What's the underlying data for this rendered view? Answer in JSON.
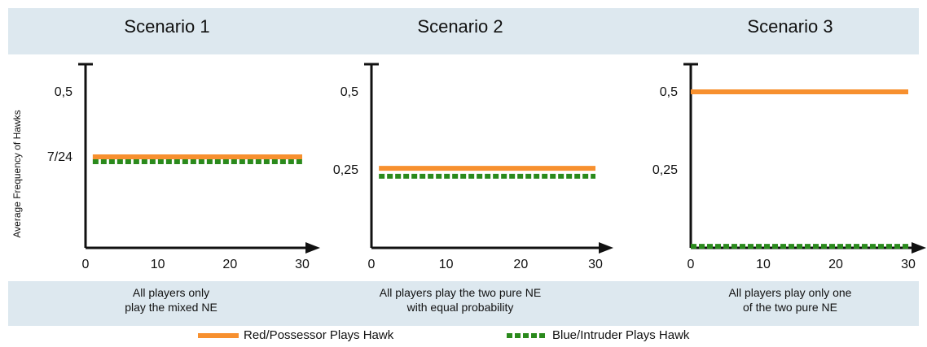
{
  "ylabel": "Average Frequency of Hawks",
  "colors": {
    "red": "#f7902f",
    "green": "#2a8a1c",
    "band": "#dde8ef",
    "axis": "#111111"
  },
  "legend": [
    {
      "label": "Red/Possessor Plays Hawk",
      "style": "solid",
      "color": "#f7902f"
    },
    {
      "label": "Blue/Intruder Plays Hawk",
      "style": "dashed",
      "color": "#2a8a1c"
    }
  ],
  "panels": [
    {
      "title": "Scenario 1",
      "caption": [
        "All players only",
        "play the mixed NE"
      ]
    },
    {
      "title": "Scenario 2",
      "caption": [
        "All players play the two pure NE",
        "with equal probability"
      ]
    },
    {
      "title": "Scenario 3",
      "caption": [
        "All players play only one",
        "of the two pure NE"
      ]
    }
  ],
  "chart_data": [
    {
      "type": "line",
      "title": "Scenario 1",
      "ylabel": "Average Frequency of Hawks",
      "xlim": [
        0,
        30
      ],
      "ylim": [
        0,
        0.6
      ],
      "xticks": [
        0,
        10,
        20,
        30
      ],
      "yticks": [
        {
          "value": 0.2917,
          "label": "7/24"
        },
        {
          "value": 0.5,
          "label": "0,5"
        }
      ],
      "series": [
        {
          "name": "Red/Possessor Plays Hawk",
          "style": "solid",
          "x": [
            1,
            30
          ],
          "y": [
            0.2917,
            0.2917
          ]
        },
        {
          "name": "Blue/Intruder Plays Hawk",
          "style": "dashed",
          "x": [
            1,
            30
          ],
          "y": [
            0.2917,
            0.2917
          ]
        }
      ]
    },
    {
      "type": "line",
      "title": "Scenario 2",
      "ylabel": "",
      "xlim": [
        0,
        30
      ],
      "ylim": [
        0,
        0.6
      ],
      "xticks": [
        0,
        10,
        20,
        30
      ],
      "yticks": [
        {
          "value": 0.25,
          "label": "0,25"
        },
        {
          "value": 0.5,
          "label": "0,5"
        }
      ],
      "series": [
        {
          "name": "Red/Possessor Plays Hawk",
          "style": "solid",
          "x": [
            1,
            30
          ],
          "y": [
            0.255,
            0.255
          ]
        },
        {
          "name": "Blue/Intruder Plays Hawk",
          "style": "dashed",
          "x": [
            1,
            30
          ],
          "y": [
            0.245,
            0.245
          ]
        }
      ]
    },
    {
      "type": "line",
      "title": "Scenario 3",
      "ylabel": "",
      "xlim": [
        0,
        30
      ],
      "ylim": [
        0,
        0.6
      ],
      "xticks": [
        0,
        10,
        20,
        30
      ],
      "yticks": [
        {
          "value": 0.25,
          "label": "0,25"
        },
        {
          "value": 0.5,
          "label": "0,5"
        }
      ],
      "series": [
        {
          "name": "Red/Possessor Plays Hawk",
          "style": "solid",
          "x": [
            0,
            30
          ],
          "y": [
            0.5,
            0.5
          ]
        },
        {
          "name": "Blue/Intruder Plays Hawk",
          "style": "dashed",
          "x": [
            0,
            30
          ],
          "y": [
            0.005,
            0.005
          ]
        }
      ]
    }
  ]
}
